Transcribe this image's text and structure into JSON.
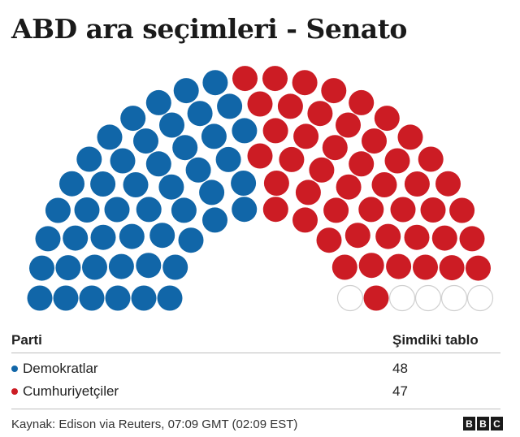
{
  "title": "ABD ara seçimleri - Senato",
  "colors": {
    "democrat": "#1166a8",
    "republican": "#cc1c24",
    "undecided_stroke": "#cfcfcf"
  },
  "chart_data": {
    "type": "parliament",
    "title": "ABD ara seçimleri - Senato",
    "total_seats": 100,
    "series": [
      {
        "name": "Demokratlar",
        "value": 48,
        "color": "#1166a8"
      },
      {
        "name": "Cumhuriyetçiler",
        "value": 47,
        "color": "#cc1c24"
      },
      {
        "value": 5,
        "color": "#ffffff"
      }
    ]
  },
  "table": {
    "header_party": "Parti",
    "header_count": "Şimdiki tablo",
    "rows": [
      {
        "label": "Demokratlar",
        "value": "48"
      },
      {
        "label": "Cumhuriyetçiler",
        "value": "47"
      }
    ]
  },
  "source": "Kaynak: Edison via Reuters, 07:09 GMT (02:09 EST)",
  "logo": [
    "B",
    "B",
    "C"
  ]
}
